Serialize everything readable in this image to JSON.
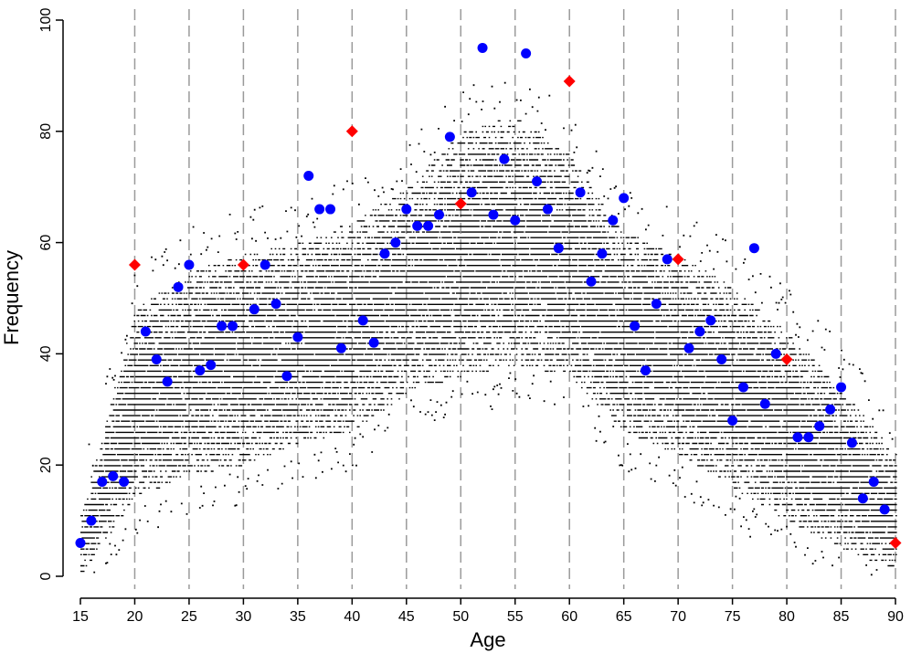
{
  "chart_data": {
    "type": "scatter",
    "xlabel": "Age",
    "ylabel": "Frequency",
    "xlim": [
      15,
      90
    ],
    "ylim": [
      0,
      100
    ],
    "xticks": [
      15,
      20,
      25,
      30,
      35,
      40,
      45,
      50,
      55,
      60,
      65,
      70,
      75,
      80,
      85,
      90
    ],
    "yticks": [
      0,
      20,
      40,
      60,
      80,
      100
    ],
    "grid": "vertical dashed lines at every 5 years",
    "background_cloud": {
      "description": "dense black point cloud of simulated frequencies per age",
      "color": "#000000",
      "envelope": [
        {
          "x": 15,
          "low": 0,
          "high": 11
        },
        {
          "x": 20,
          "low": 14,
          "high": 48
        },
        {
          "x": 25,
          "low": 18,
          "high": 55
        },
        {
          "x": 30,
          "low": 20,
          "high": 58
        },
        {
          "x": 35,
          "low": 24,
          "high": 60
        },
        {
          "x": 40,
          "low": 26,
          "high": 64
        },
        {
          "x": 45,
          "low": 33,
          "high": 70
        },
        {
          "x": 50,
          "low": 36,
          "high": 80
        },
        {
          "x": 55,
          "low": 38,
          "high": 83
        },
        {
          "x": 60,
          "low": 36,
          "high": 76
        },
        {
          "x": 65,
          "low": 26,
          "high": 62
        },
        {
          "x": 70,
          "low": 22,
          "high": 58
        },
        {
          "x": 75,
          "low": 16,
          "high": 52
        },
        {
          "x": 80,
          "low": 10,
          "high": 44
        },
        {
          "x": 85,
          "low": 5,
          "high": 34
        },
        {
          "x": 90,
          "low": 1,
          "high": 22
        }
      ]
    },
    "series": [
      {
        "marker": "circle",
        "color": "#0000ff",
        "points": [
          [
            15,
            6
          ],
          [
            16,
            10
          ],
          [
            17,
            17
          ],
          [
            18,
            18
          ],
          [
            19,
            17
          ],
          [
            21,
            44
          ],
          [
            22,
            39
          ],
          [
            23,
            35
          ],
          [
            24,
            52
          ],
          [
            25,
            56
          ],
          [
            26,
            37
          ],
          [
            27,
            38
          ],
          [
            28,
            45
          ],
          [
            29,
            45
          ],
          [
            31,
            48
          ],
          [
            32,
            56
          ],
          [
            33,
            49
          ],
          [
            34,
            36
          ],
          [
            35,
            43
          ],
          [
            36,
            72
          ],
          [
            37,
            66
          ],
          [
            38,
            66
          ],
          [
            39,
            41
          ],
          [
            41,
            46
          ],
          [
            42,
            42
          ],
          [
            43,
            58
          ],
          [
            44,
            60
          ],
          [
            45,
            66
          ],
          [
            46,
            63
          ],
          [
            47,
            63
          ],
          [
            48,
            65
          ],
          [
            49,
            79
          ],
          [
            51,
            69
          ],
          [
            52,
            95
          ],
          [
            53,
            65
          ],
          [
            54,
            75
          ],
          [
            55,
            64
          ],
          [
            56,
            94
          ],
          [
            57,
            71
          ],
          [
            58,
            66
          ],
          [
            59,
            59
          ],
          [
            61,
            69
          ],
          [
            62,
            53
          ],
          [
            63,
            58
          ],
          [
            64,
            64
          ],
          [
            65,
            68
          ],
          [
            66,
            45
          ],
          [
            67,
            37
          ],
          [
            68,
            49
          ],
          [
            69,
            57
          ],
          [
            71,
            41
          ],
          [
            72,
            44
          ],
          [
            73,
            46
          ],
          [
            74,
            39
          ],
          [
            75,
            28
          ],
          [
            76,
            34
          ],
          [
            77,
            59
          ],
          [
            78,
            31
          ],
          [
            79,
            40
          ],
          [
            81,
            25
          ],
          [
            82,
            25
          ],
          [
            83,
            27
          ],
          [
            84,
            30
          ],
          [
            85,
            34
          ],
          [
            86,
            24
          ],
          [
            87,
            14
          ],
          [
            88,
            17
          ],
          [
            89,
            12
          ]
        ]
      },
      {
        "marker": "diamond",
        "color": "#ff0000",
        "points": [
          [
            20,
            56
          ],
          [
            30,
            56
          ],
          [
            40,
            80
          ],
          [
            50,
            67
          ],
          [
            60,
            89
          ],
          [
            70,
            57
          ],
          [
            80,
            39
          ],
          [
            90,
            6
          ]
        ]
      }
    ]
  }
}
